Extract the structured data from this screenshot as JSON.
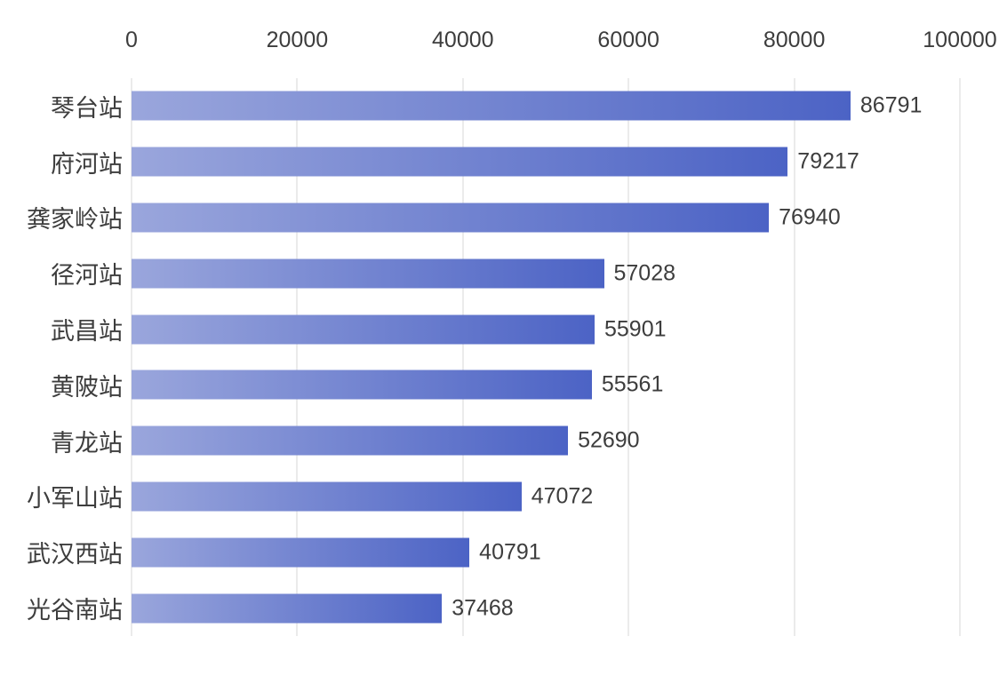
{
  "chart_data": {
    "type": "bar",
    "orientation": "horizontal",
    "title": "",
    "categories": [
      "琴台站",
      "府河站",
      "龚家岭站",
      "径河站",
      "武昌站",
      "黄陂站",
      "青龙站",
      "小军山站",
      "武汉西站",
      "光谷南站"
    ],
    "values": [
      86791,
      79217,
      76940,
      57028,
      55901,
      55561,
      52690,
      47072,
      40791,
      37468
    ],
    "value_labels": [
      "86791",
      "79217",
      "76940",
      "57028",
      "55901",
      "55561",
      "52690",
      "47072",
      "40791",
      "37468"
    ],
    "xlim": [
      0,
      100000
    ],
    "x_ticks": [
      0,
      20000,
      40000,
      60000,
      80000,
      100000
    ],
    "x_tick_labels": [
      "0",
      "20000",
      "40000",
      "60000",
      "80000",
      "100000"
    ],
    "axis_position": "top",
    "grid": true,
    "legend_position": "none",
    "colors": {
      "bar_gradient_start": "#9aa6dc",
      "bar_gradient_end": "#4c63c5",
      "text": "#3d3d3d",
      "gridline": "#ebebeb",
      "background": "#ffffff"
    }
  }
}
